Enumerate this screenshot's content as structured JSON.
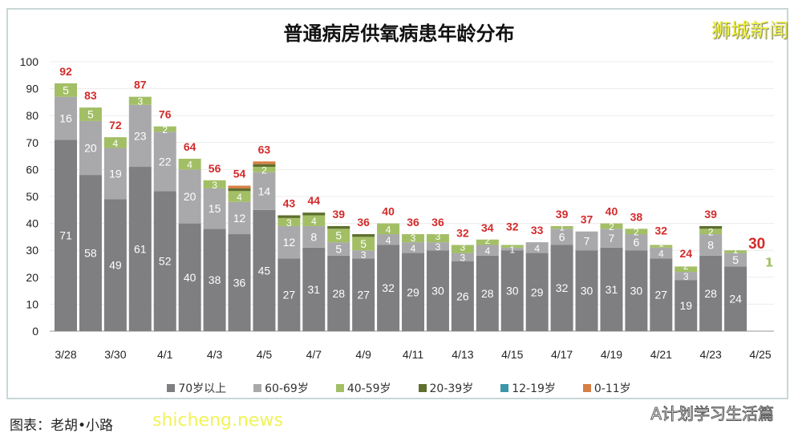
{
  "title": "普通病房供氧病患年龄分布",
  "brand": "狮城新闻",
  "wechat": "A计划学习生活篇",
  "caption": "图表：老胡•小路",
  "watermark": "shicheng.news",
  "chart_data": {
    "type": "bar",
    "stacked": true,
    "title": "普通病房供氧病患年龄分布",
    "ylim": [
      0,
      100
    ],
    "yticks": [
      0,
      10,
      20,
      30,
      40,
      50,
      60,
      70,
      80,
      90,
      100
    ],
    "categories": [
      "3/28",
      "3/29",
      "3/30",
      "3/31",
      "4/1",
      "4/2",
      "4/3",
      "4/4",
      "4/5",
      "4/6",
      "4/7",
      "4/8",
      "4/9",
      "4/10",
      "4/11",
      "4/12",
      "4/13",
      "4/14",
      "4/15",
      "4/16",
      "4/17",
      "4/18",
      "4/19",
      "4/20",
      "4/21",
      "4/22",
      "4/23",
      "4/24",
      "4/25"
    ],
    "xtick_labels": [
      "3/28",
      "3/30",
      "4/1",
      "4/3",
      "4/5",
      "4/7",
      "4/9",
      "4/11",
      "4/13",
      "4/15",
      "4/17",
      "4/19",
      "4/21",
      "4/23",
      "4/25"
    ],
    "series": [
      {
        "name": "70岁以上",
        "color": "#7f7e80",
        "values": [
          71,
          58,
          49,
          61,
          52,
          40,
          38,
          36,
          45,
          27,
          31,
          28,
          27,
          32,
          29,
          30,
          26,
          28,
          30,
          29,
          32,
          30,
          31,
          30,
          27,
          19,
          28,
          24,
          0
        ]
      },
      {
        "name": "60-69岁",
        "color": "#a9a9ab",
        "values": [
          16,
          20,
          19,
          23,
          22,
          20,
          15,
          12,
          14,
          12,
          8,
          5,
          3,
          4,
          4,
          3,
          3,
          4,
          1,
          4,
          6,
          7,
          7,
          6,
          4,
          3,
          8,
          5,
          0
        ]
      },
      {
        "name": "40-59岁",
        "color": "#a3bf66",
        "values": [
          5,
          5,
          4,
          3,
          2,
          4,
          3,
          4,
          2,
          3,
          4,
          5,
          5,
          4,
          3,
          3,
          3,
          2,
          1,
          0,
          1,
          0,
          2,
          2,
          1,
          2,
          2,
          1,
          0
        ]
      },
      {
        "name": "20-39岁",
        "color": "#5e6f2e",
        "values": [
          0,
          0,
          0,
          0,
          0,
          0,
          0,
          1,
          1,
          1,
          1,
          1,
          1,
          0,
          0,
          0,
          0,
          0,
          0,
          0,
          0,
          0,
          0,
          0,
          0,
          0,
          1,
          0,
          0
        ]
      },
      {
        "name": "12-19岁",
        "color": "#3a97a8",
        "values": [
          0,
          0,
          0,
          0,
          0,
          0,
          0,
          0,
          0,
          0,
          0,
          0,
          0,
          0,
          0,
          0,
          0,
          0,
          0,
          0,
          0,
          0,
          0,
          0,
          0,
          0,
          0,
          0,
          0
        ]
      },
      {
        "name": "0-11岁",
        "color": "#d67f45",
        "values": [
          0,
          0,
          0,
          0,
          0,
          0,
          0,
          1,
          1,
          0,
          0,
          0,
          0,
          0,
          0,
          0,
          0,
          0,
          0,
          0,
          0,
          0,
          0,
          0,
          0,
          0,
          0,
          0,
          0
        ]
      }
    ],
    "totals": [
      92,
      83,
      72,
      87,
      76,
      64,
      56,
      54,
      63,
      43,
      44,
      39,
      36,
      40,
      36,
      36,
      32,
      34,
      32,
      33,
      39,
      37,
      40,
      38,
      32,
      24,
      39,
      30,
      null
    ],
    "side_note": "1",
    "total_color": "#d42a2a",
    "legend": "bottom"
  }
}
